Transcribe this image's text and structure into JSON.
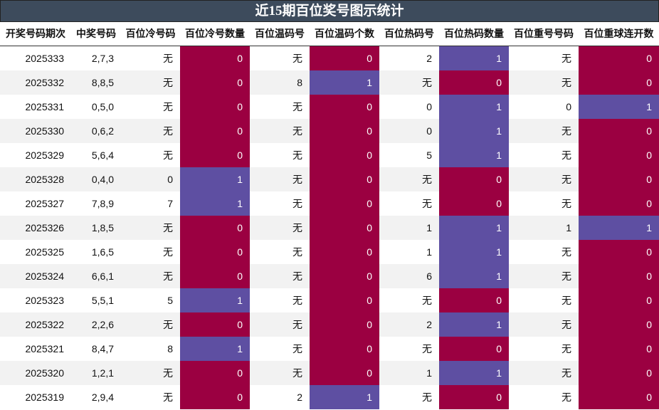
{
  "title": "近15期百位奖号图示统计",
  "table": {
    "headers": [
      "开奖号码期次",
      "中奖号码",
      "百位冷号码",
      "百位冷号数量",
      "百位温码号",
      "百位温码个数",
      "百位热码号",
      "百位热码数量",
      "百位重号号码",
      "百位重球连开数"
    ],
    "count_columns": [
      3,
      5,
      7,
      9
    ],
    "count_colors": [
      "#9b0041",
      "#5e4fa2"
    ],
    "rows": [
      [
        "2025333",
        "2,7,3",
        "无",
        0,
        "无",
        0,
        "2",
        1,
        "无",
        0
      ],
      [
        "2025332",
        "8,8,5",
        "无",
        0,
        "8",
        1,
        "无",
        0,
        "无",
        0
      ],
      [
        "2025331",
        "0,5,0",
        "无",
        0,
        "无",
        0,
        "0",
        1,
        "0",
        1
      ],
      [
        "2025330",
        "0,6,2",
        "无",
        0,
        "无",
        0,
        "0",
        1,
        "无",
        0
      ],
      [
        "2025329",
        "5,6,4",
        "无",
        0,
        "无",
        0,
        "5",
        1,
        "无",
        0
      ],
      [
        "2025328",
        "0,4,0",
        "0",
        1,
        "无",
        0,
        "无",
        0,
        "无",
        0
      ],
      [
        "2025327",
        "7,8,9",
        "7",
        1,
        "无",
        0,
        "无",
        0,
        "无",
        0
      ],
      [
        "2025326",
        "1,8,5",
        "无",
        0,
        "无",
        0,
        "1",
        1,
        "1",
        1
      ],
      [
        "2025325",
        "1,6,5",
        "无",
        0,
        "无",
        0,
        "1",
        1,
        "无",
        0
      ],
      [
        "2025324",
        "6,6,1",
        "无",
        0,
        "无",
        0,
        "6",
        1,
        "无",
        0
      ],
      [
        "2025323",
        "5,5,1",
        "5",
        1,
        "无",
        0,
        "无",
        0,
        "无",
        0
      ],
      [
        "2025322",
        "2,2,6",
        "无",
        0,
        "无",
        0,
        "2",
        1,
        "无",
        0
      ],
      [
        "2025321",
        "8,4,7",
        "8",
        1,
        "无",
        0,
        "无",
        0,
        "无",
        0
      ],
      [
        "2025320",
        "1,2,1",
        "无",
        0,
        "无",
        0,
        "1",
        1,
        "无",
        0
      ],
      [
        "2025319",
        "2,9,4",
        "无",
        0,
        "2",
        1,
        "无",
        0,
        "无",
        0
      ]
    ]
  }
}
